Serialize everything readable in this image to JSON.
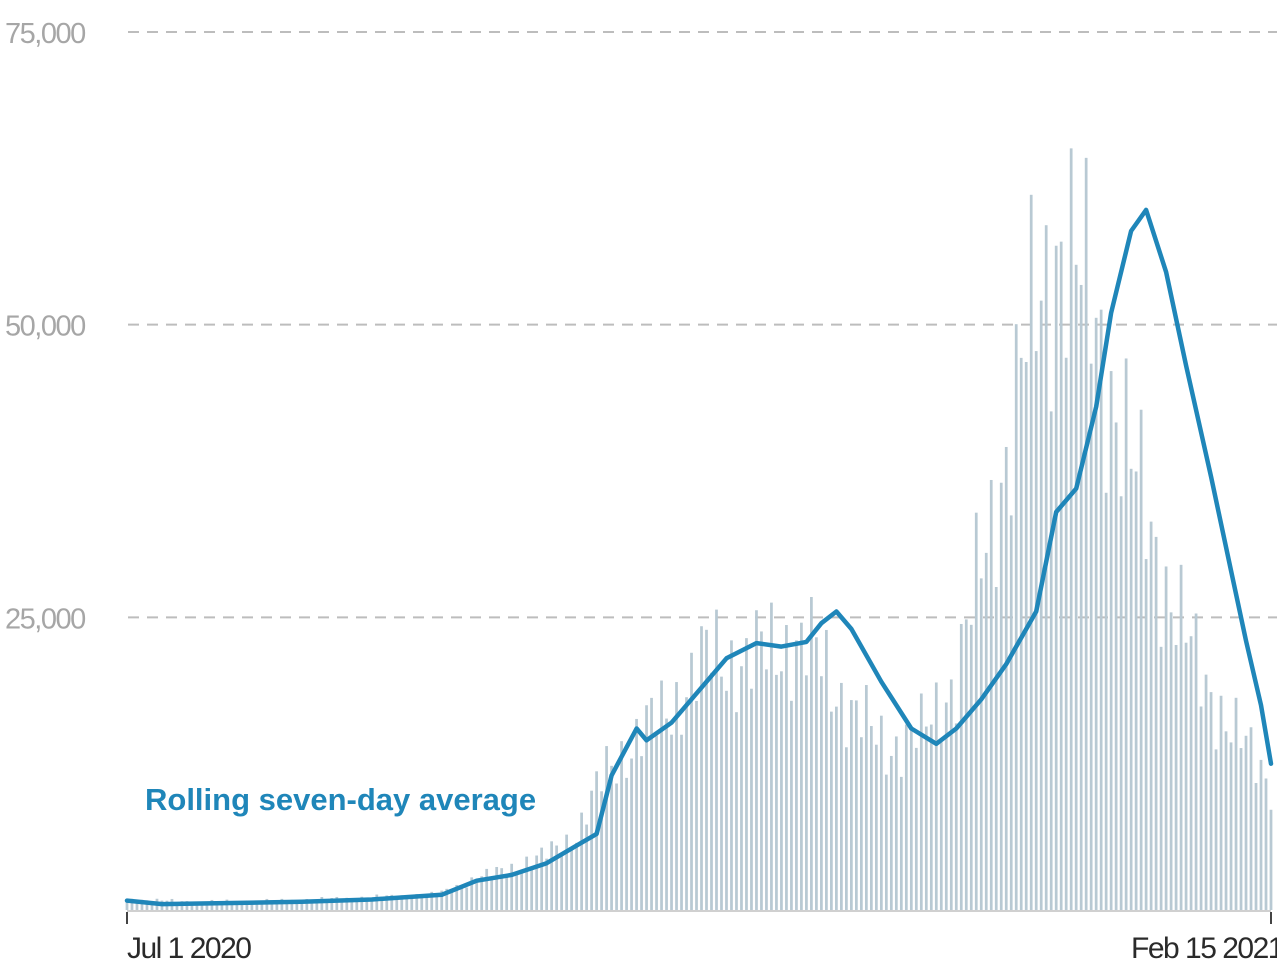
{
  "chart_data": {
    "type": "bar",
    "title": "",
    "xlabel": "",
    "ylabel": "",
    "ylim": [
      0,
      75000
    ],
    "yticks": [
      {
        "value": 75000,
        "label": "75,000"
      },
      {
        "value": 50000,
        "label": "50,000"
      },
      {
        "value": 25000,
        "label": "25,000"
      }
    ],
    "xticks": [
      {
        "date": "2020-07-01",
        "label": "Jul 1 2020"
      },
      {
        "date": "2021-02-15",
        "label": "Feb 15 2021"
      }
    ],
    "x_range": [
      "2020-07-01",
      "2021-02-15"
    ],
    "grid": true,
    "grid_style": "dashed horizontal",
    "colors": {
      "bars": "#b8c9d3",
      "line": "#1f86b9",
      "grid": "#bdbdbd"
    },
    "daily_series_note_free": true,
    "series": [
      {
        "kind": "bar",
        "values_by_date": [
          [
            "2020-07-01",
            900
          ],
          [
            "2020-07-15",
            700
          ],
          [
            "2020-08-01",
            800
          ],
          [
            "2020-08-15",
            1000
          ],
          [
            "2020-09-01",
            1300
          ],
          [
            "2020-09-08",
            2500
          ],
          [
            "2020-09-15",
            3500
          ],
          [
            "2020-09-22",
            4500
          ],
          [
            "2020-09-29",
            6500
          ],
          [
            "2020-10-05",
            12000
          ],
          [
            "2020-10-12",
            15000
          ],
          [
            "2020-10-19",
            18000
          ],
          [
            "2020-10-26",
            22000
          ],
          [
            "2020-11-02",
            21000
          ],
          [
            "2020-11-09",
            23000
          ],
          [
            "2020-11-16",
            22000
          ],
          [
            "2020-11-23",
            17000
          ],
          [
            "2020-11-30",
            14000
          ],
          [
            "2020-12-07",
            15000
          ],
          [
            "2020-12-14",
            20000
          ],
          [
            "2020-12-21",
            33000
          ],
          [
            "2020-12-28",
            48000
          ],
          [
            "2021-01-04",
            58000
          ],
          [
            "2021-01-11",
            50000
          ],
          [
            "2021-01-18",
            38000
          ],
          [
            "2021-01-25",
            28000
          ],
          [
            "2021-02-01",
            20000
          ],
          [
            "2021-02-08",
            15000
          ],
          [
            "2021-02-15",
            11000
          ]
        ]
      },
      {
        "name": "Rolling seven-day average",
        "kind": "line",
        "points": [
          [
            "2020-07-01",
            800
          ],
          [
            "2020-07-08",
            500
          ],
          [
            "2020-07-22",
            600
          ],
          [
            "2020-08-05",
            700
          ],
          [
            "2020-08-19",
            900
          ],
          [
            "2020-08-26",
            1100
          ],
          [
            "2020-09-02",
            1300
          ],
          [
            "2020-09-09",
            2500
          ],
          [
            "2020-09-16",
            3000
          ],
          [
            "2020-09-23",
            4000
          ],
          [
            "2020-09-29",
            5500
          ],
          [
            "2020-10-03",
            6500
          ],
          [
            "2020-10-06",
            11500
          ],
          [
            "2020-10-11",
            15500
          ],
          [
            "2020-10-13",
            14500
          ],
          [
            "2020-10-18",
            16000
          ],
          [
            "2020-10-23",
            18500
          ],
          [
            "2020-10-29",
            21500
          ],
          [
            "2020-11-04",
            22800
          ],
          [
            "2020-11-09",
            22500
          ],
          [
            "2020-11-14",
            22900
          ],
          [
            "2020-11-17",
            24500
          ],
          [
            "2020-11-20",
            25500
          ],
          [
            "2020-11-23",
            24000
          ],
          [
            "2020-11-29",
            19500
          ],
          [
            "2020-12-05",
            15500
          ],
          [
            "2020-12-10",
            14200
          ],
          [
            "2020-12-14",
            15500
          ],
          [
            "2020-12-19",
            18000
          ],
          [
            "2020-12-24",
            21000
          ],
          [
            "2020-12-30",
            25500
          ],
          [
            "2021-01-03",
            34000
          ],
          [
            "2021-01-07",
            36000
          ],
          [
            "2021-01-11",
            43000
          ],
          [
            "2021-01-14",
            51000
          ],
          [
            "2021-01-18",
            58000
          ],
          [
            "2021-01-21",
            59800
          ],
          [
            "2021-01-25",
            54500
          ],
          [
            "2021-01-29",
            46500
          ],
          [
            "2021-02-03",
            37000
          ],
          [
            "2021-02-07",
            29000
          ],
          [
            "2021-02-10",
            23000
          ],
          [
            "2021-02-13",
            17500
          ],
          [
            "2021-02-15",
            12500
          ]
        ]
      }
    ]
  }
}
